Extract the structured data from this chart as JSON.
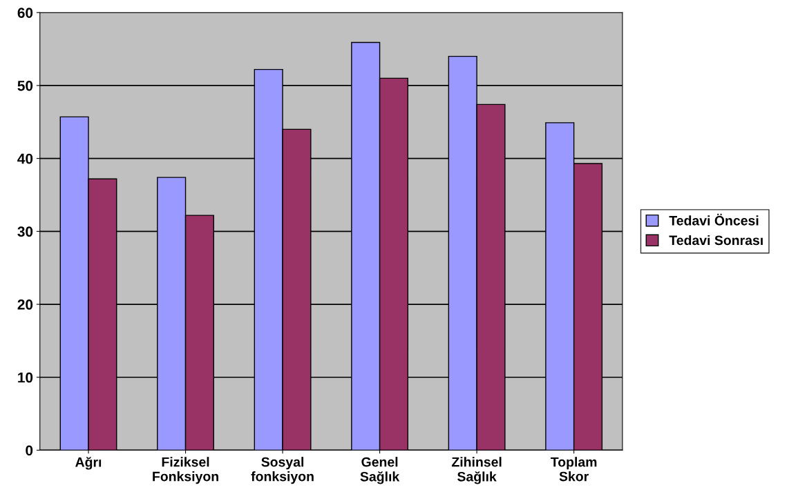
{
  "chart_data": {
    "type": "bar",
    "categories": [
      "Ağrı",
      "Fiziksel\nFonksiyon",
      "Sosyal\nfonksiyon",
      "Genel\nSağlık",
      "Zihinsel\nSağlık",
      "Toplam\nSkor"
    ],
    "series": [
      {
        "name": "Tedavi Öncesi",
        "color": "#9999ff",
        "values": [
          45.7,
          37.4,
          52.2,
          55.9,
          54.0,
          44.9
        ]
      },
      {
        "name": "Tedavi Sonrası",
        "color": "#993366",
        "values": [
          37.2,
          32.2,
          44.0,
          51.0,
          47.4,
          39.3
        ]
      }
    ],
    "ylim": [
      0,
      60
    ],
    "yticks": [
      0,
      10,
      20,
      30,
      40,
      50,
      60
    ],
    "grid": "y",
    "legend": "right"
  }
}
